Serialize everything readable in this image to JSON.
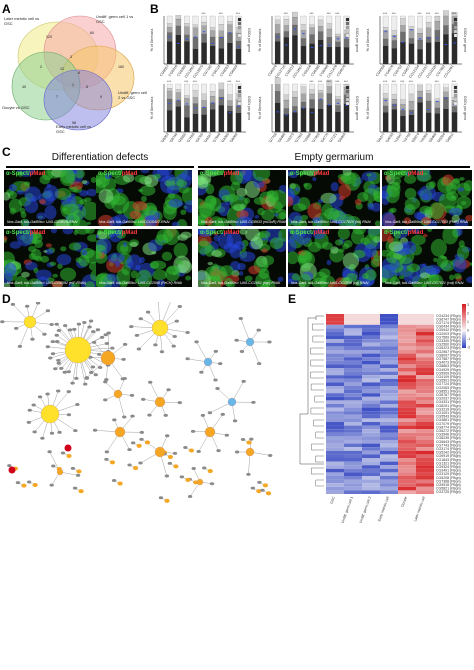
{
  "panels": {
    "A": "A",
    "B": "B",
    "C": "C",
    "D": "D",
    "E": "E"
  },
  "venn": {
    "sets": [
      "Later meiotic cell vs GSC",
      "Undiff. germ cell 1 vs GSC",
      "Undiff. germ cell 2 vs GSC",
      "Oocyte vs GSC",
      "Early meiotic cell vs GSC"
    ],
    "colors": [
      "#f3ee9a",
      "#f6a9a9",
      "#f6c76a",
      "#8fd08f",
      "#7f7fe0"
    ]
  },
  "section_c": {
    "differentiation_header": "Differentiation defects",
    "empty_header": "Empty germarium",
    "stain_a": "α-Spect/",
    "stain_b": "pMad",
    "genotypes": [
      "Nos-Gal4; tub-Gal80ts> UAS-CG4010-RNAi",
      "Nos-Gal4; tub-Gal80ts> UAS-CG5412-RNAi",
      "Nos-Gal4; tub-Gal80ts> UAS-CG8592 (eIF-RNAi)",
      "Nos-Gal4; tub-Gal80ts> UAS-CG2098 (FeCH) RNAi",
      "Nos-Gal4; tub-Gal80ts> UAS-CG8933 (mGluR) RNAi",
      "Nos-Gal4; tub-Gal80ts> UAS-CG17829 (hb) RNAi",
      "Nos-Gal4; tub-Gal80ts> UAS-CG17003 (PolE) RNAi",
      "Nos-Gal4; tub-Gal80ts> UAS-CG1601 (ngr) RNAi",
      "Nos-Gal4; tub-Gal80ts> UAS-CG1598 (cg) RNAi",
      "Nos-Gal4; tub-Gal80ts> UAS-CG7021 (cut) RNAi"
    ]
  },
  "heatmap": {
    "columns": [
      "GSC",
      "Undiff. germ cell 1",
      "Undiff. germ cell 2",
      "Early meiotic cell",
      "Oocyte",
      "Later meiotic cell"
    ],
    "scale": [
      "3",
      "2",
      "1",
      "0",
      "-1",
      "-2"
    ],
    "colors": {
      "high": "#d7191c",
      "mid": "#f7f7f7",
      "low": "#2b3fbf"
    }
  },
  "chart_data": {
    "type": "bar",
    "ylabel": "% of Germaria",
    "ylabel_right": "GSCs per germ",
    "ylim": [
      0,
      100
    ],
    "note": "stacked percentage bars with dot overlay; values approximate"
  }
}
